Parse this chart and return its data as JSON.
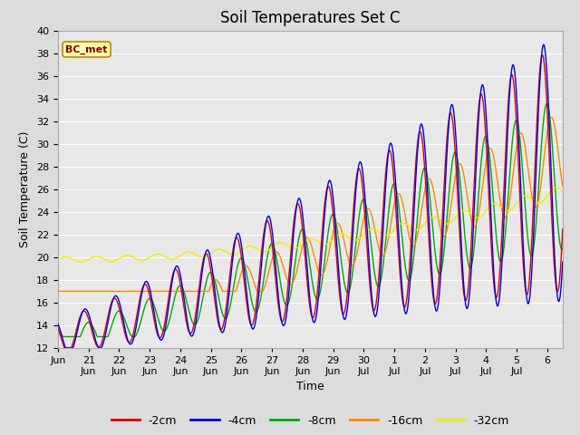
{
  "title": "Soil Temperatures Set C",
  "xlabel": "Time",
  "ylabel": "Soil Temperature (C)",
  "ylim": [
    12,
    40
  ],
  "background_color": "#dcdcdc",
  "plot_bg_color": "#e8e8e8",
  "grid_color": "#ffffff",
  "series_colors": {
    "-2cm": "#dd0000",
    "-4cm": "#0000dd",
    "-8cm": "#00aa00",
    "-16cm": "#ff8800",
    "-32cm": "#eeee00"
  },
  "legend_label": "BC_met",
  "legend_bg": "#ffffaa",
  "legend_border": "#bb8800",
  "legend_text_color": "#880000",
  "tick_labels": [
    "Jun 21",
    "Jun 22",
    "Jun 23",
    "Jun 24",
    "Jun 25",
    "Jun 26",
    "Jun 27",
    "Jun 28",
    "Jun 29",
    "Jun 30",
    "Jul 1",
    "Jul 2",
    "Jul 3",
    "Jul 4",
    "Jul 5",
    "Jul 6"
  ],
  "title_fontsize": 12,
  "axis_fontsize": 9,
  "tick_fontsize": 8
}
